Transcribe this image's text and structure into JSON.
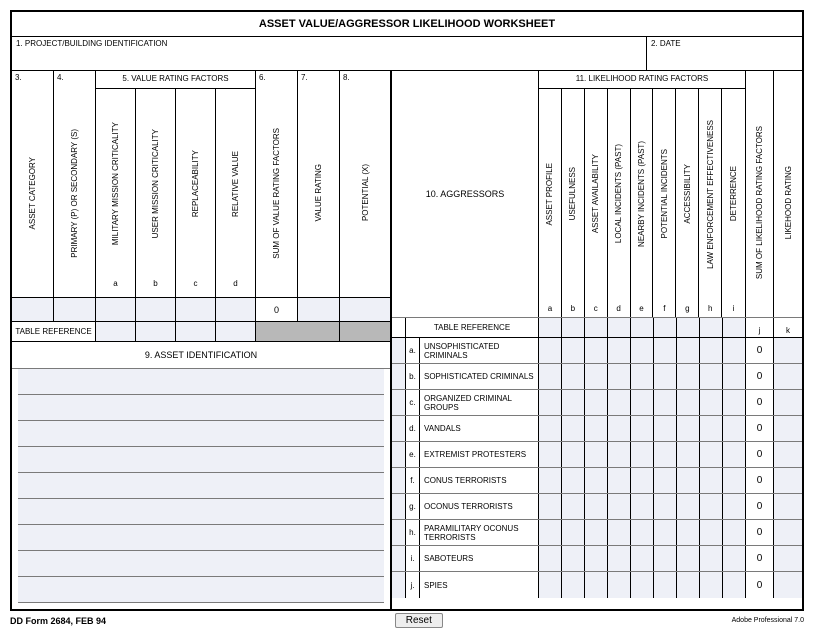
{
  "title": "ASSET VALUE/AGGRESSOR LIKELIHOOD WORKSHEET",
  "header": {
    "project_label": "1.  PROJECT/BUILDING IDENTIFICATION",
    "date_label": "2.  DATE"
  },
  "left": {
    "n3": "3.",
    "n4": "4.",
    "n5": "5.  VALUE RATING FACTORS",
    "n6": "6.",
    "n7": "7.",
    "n8": "8.",
    "asset_category": "ASSET CATEGORY",
    "primary_secondary": "PRIMARY (P) OR SECONDARY (S)",
    "military_mission": "MILITARY MISSION CRITICALITY",
    "user_mission": "USER MISSION CRITICALITY",
    "replaceability": "REPLACEABILITY",
    "relative_value": "RELATIVE VALUE",
    "sum_vrf": "SUM OF VALUE RATING FACTORS",
    "value_rating": "VALUE RATING",
    "potential": "POTENTIAL (X)",
    "letters": [
      "a",
      "b",
      "c",
      "d"
    ],
    "sum_value": "0",
    "table_reference": "TABLE REFERENCE",
    "asset_identification": "9.  ASSET IDENTIFICATION"
  },
  "right": {
    "aggressors_label": "10.  AGGRESSORS",
    "likelihood_group": "11.  LIKELIHOOD RATING FACTORS",
    "cols": [
      "ASSET PROFILE",
      "USEFULNESS",
      "ASSET AVAILABILITY",
      "LOCAL INCIDENTS (PAST)",
      "NEARBY INCIDENTS (PAST)",
      "POTENTIAL INCIDENTS",
      "ACCESSIBILITY",
      "LAW ENFORCEMENT EFFECTIVENESS",
      "DETERRENCE"
    ],
    "sum_lrf": "SUM OF LIKELIHOOD RATING FACTORS",
    "likelihood_rating": "LIKEHOOD RATING",
    "letters": [
      "a",
      "b",
      "c",
      "d",
      "e",
      "f",
      "g",
      "h",
      "i"
    ],
    "jk": [
      "j",
      "k"
    ],
    "table_reference": "TABLE REFERENCE",
    "aggressors": [
      {
        "l": "a.",
        "name": "UNSOPHISTICATED CRIMINALS",
        "sum": "0"
      },
      {
        "l": "b.",
        "name": "SOPHISTICATED CRIMINALS",
        "sum": "0"
      },
      {
        "l": "c.",
        "name": "ORGANIZED CRIMINAL GROUPS",
        "sum": "0"
      },
      {
        "l": "d.",
        "name": "VANDALS",
        "sum": "0"
      },
      {
        "l": "e.",
        "name": "EXTREMIST PROTESTERS",
        "sum": "0"
      },
      {
        "l": "f.",
        "name": "CONUS TERRORISTS",
        "sum": "0"
      },
      {
        "l": "g.",
        "name": "OCONUS TERRORISTS",
        "sum": "0"
      },
      {
        "l": "h.",
        "name": "PARAMILITARY OCONUS TERRORISTS",
        "sum": "0"
      },
      {
        "l": "i.",
        "name": "SABOTEURS",
        "sum": "0"
      },
      {
        "l": "j.",
        "name": "SPIES",
        "sum": "0"
      }
    ]
  },
  "footer": {
    "form": "DD Form 2684, FEB 94",
    "reset": "Reset",
    "adobe": "Adobe Professional 7.0"
  },
  "colors": {
    "fill": "#eef0f7",
    "grey": "#b8b8b8"
  }
}
